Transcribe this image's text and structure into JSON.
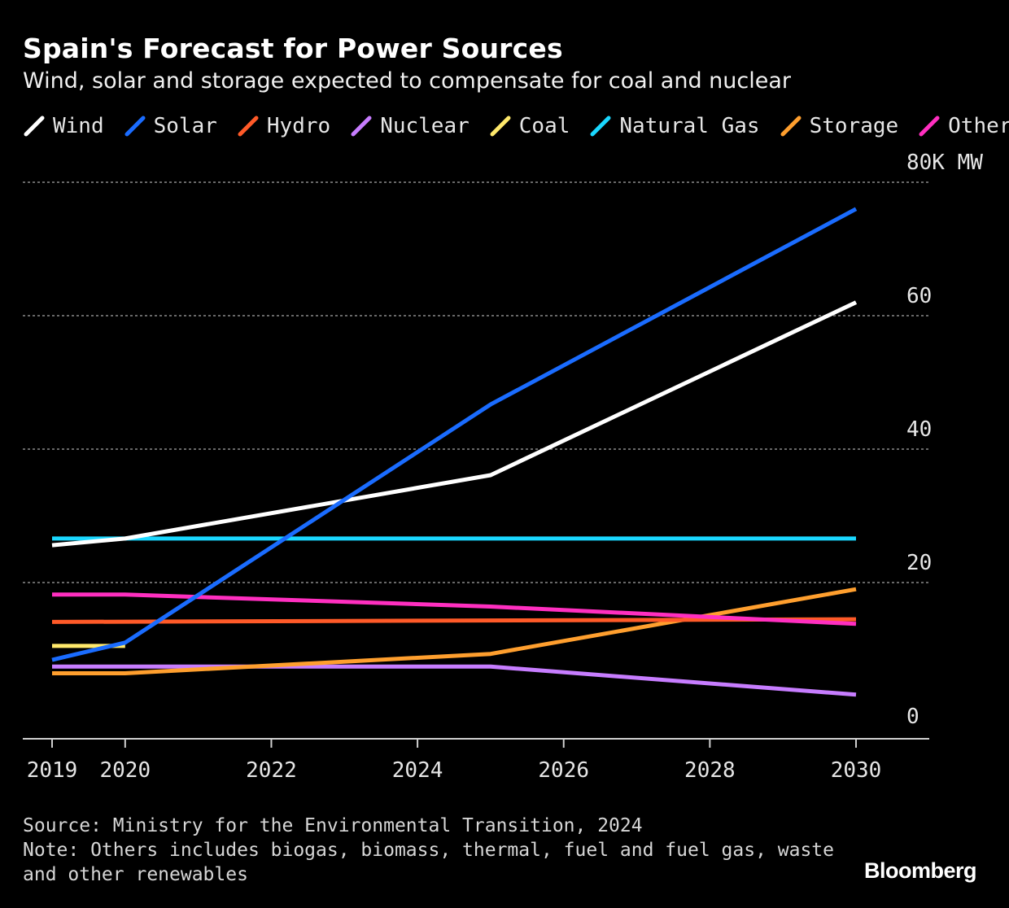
{
  "title": "Spain's Forecast for Power Sources",
  "subtitle": "Wind, solar and storage expected to compensate for coal and nuclear",
  "footer": {
    "source": "Source: Ministry for the Environmental Transition, 2024",
    "note_line1": "Note: Others includes biogas, biomass, thermal, fuel and fuel gas, waste",
    "note_line2": "and other renewables"
  },
  "brand": "Bloomberg",
  "chart_data": {
    "type": "line",
    "title": "Spain's Forecast for Power Sources",
    "subtitle": "Wind, solar and storage expected to compensate for coal and nuclear",
    "ylabel": "",
    "ylim": [
      0,
      80
    ],
    "xlim": [
      2019,
      2030
    ],
    "x_ticks": [
      2019,
      2020,
      2022,
      2024,
      2026,
      2028,
      2030
    ],
    "y_ticks": [
      {
        "value": 0,
        "label": "0"
      },
      {
        "value": 20,
        "label": "20"
      },
      {
        "value": 40,
        "label": "40"
      },
      {
        "value": 60,
        "label": "60"
      },
      {
        "value": 80,
        "label": "80K MW"
      }
    ],
    "grid": "horizontal dotted",
    "legend_position": "top",
    "series": [
      {
        "name": "Wind",
        "color": "#ffffff",
        "points": [
          [
            2019,
            25.6
          ],
          [
            2020,
            26.6
          ],
          [
            2025,
            36.1
          ],
          [
            2030,
            62.0
          ]
        ]
      },
      {
        "name": "Solar",
        "color": "#1a6cff",
        "points": [
          [
            2019,
            8.4
          ],
          [
            2020,
            11.0
          ],
          [
            2025,
            46.7
          ],
          [
            2030,
            76.0
          ]
        ]
      },
      {
        "name": "Hydro",
        "color": "#ff5a28",
        "points": [
          [
            2019,
            14.1
          ],
          [
            2030,
            14.5
          ]
        ]
      },
      {
        "name": "Nuclear",
        "color": "#c77dff",
        "points": [
          [
            2019,
            7.4
          ],
          [
            2025,
            7.4
          ],
          [
            2030,
            3.2
          ]
        ]
      },
      {
        "name": "Coal",
        "color": "#ffe96b",
        "points": [
          [
            2019,
            10.5
          ],
          [
            2020,
            10.5
          ]
        ]
      },
      {
        "name": "Natural Gas",
        "color": "#1ad8ff",
        "points": [
          [
            2019,
            26.6
          ],
          [
            2030,
            26.6
          ]
        ]
      },
      {
        "name": "Storage",
        "color": "#ff9f2e",
        "points": [
          [
            2019,
            6.4
          ],
          [
            2020,
            6.4
          ],
          [
            2025,
            9.3
          ],
          [
            2030,
            19.0
          ]
        ]
      },
      {
        "name": "Others",
        "color": "#ff2fc0",
        "points": [
          [
            2019,
            18.2
          ],
          [
            2020,
            18.2
          ],
          [
            2025,
            16.4
          ],
          [
            2030,
            13.8
          ]
        ]
      }
    ]
  }
}
